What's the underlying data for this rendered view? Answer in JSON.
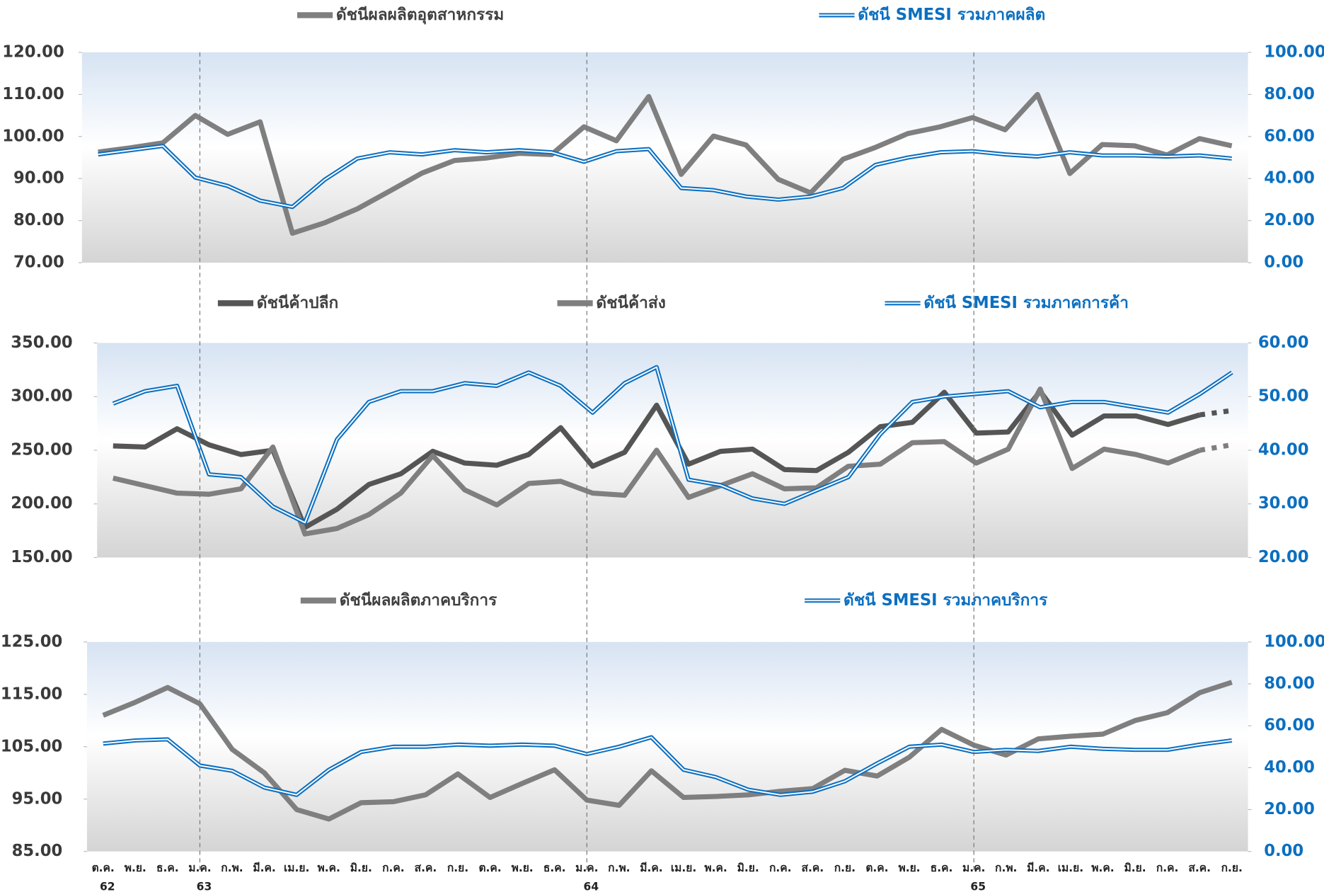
{
  "chart_data": [
    {
      "type": "line",
      "ylim": [
        70,
        120
      ],
      "yticks": [
        {
          "value": 70,
          "label": "70.00"
        },
        {
          "value": 80,
          "label": "80.00"
        },
        {
          "value": 90,
          "label": "90.00"
        },
        {
          "value": 100,
          "label": "100.00"
        },
        {
          "value": 110,
          "label": "110.00"
        },
        {
          "value": 120,
          "label": "120.00"
        }
      ],
      "y2lim": [
        0,
        100
      ],
      "y2ticks": [
        {
          "value": 0,
          "label": "0.00"
        },
        {
          "value": 20,
          "label": "20.00"
        },
        {
          "value": 40,
          "label": "40.00"
        },
        {
          "value": 60,
          "label": "60.00"
        },
        {
          "value": 80,
          "label": "80.00"
        },
        {
          "value": 100,
          "label": "100.00"
        }
      ],
      "series": [
        {
          "name": "ดัชนีผลผลิตอุตสาหกรรม",
          "color": "#7f7f7f",
          "line_style": "solid",
          "values": [
            96.3,
            97.3,
            98.5,
            105,
            100.5,
            103.5,
            77,
            79.5,
            82.8,
            87,
            91.3,
            94.3,
            94.9,
            96,
            95.7,
            102.3,
            99,
            109.5,
            91,
            100.1,
            98,
            89.8,
            86.6,
            94.6,
            97.4,
            100.7,
            102.3,
            104.5,
            101.6,
            110,
            91.2,
            98.1,
            97.8,
            95.6,
            99.5,
            97.8
          ]
        },
        {
          "name": "ดัชนี SMESI รวมภาคผลิต",
          "color": "#0b6fc0",
          "line_style": "double",
          "axis": "y2",
          "values": [
            51.5,
            53.5,
            55.5,
            40.5,
            36.5,
            29.5,
            26.5,
            39.5,
            49.5,
            52.5,
            51.5,
            53.5,
            52.5,
            53.5,
            52.5,
            48,
            53,
            54,
            35.5,
            34.5,
            31.5,
            30,
            31.5,
            35.5,
            46.5,
            50,
            52.5,
            53,
            51.5,
            50.5,
            52.5,
            51,
            51,
            50.5,
            51,
            49.5
          ]
        }
      ]
    },
    {
      "type": "line",
      "ylim": [
        150,
        350
      ],
      "yticks": [
        {
          "value": 150,
          "label": "150.00"
        },
        {
          "value": 200,
          "label": "200.00"
        },
        {
          "value": 250,
          "label": "250.00"
        },
        {
          "value": 300,
          "label": "300.00"
        },
        {
          "value": 350,
          "label": "350.00"
        }
      ],
      "y2lim": [
        20,
        60
      ],
      "y2ticks": [
        {
          "value": 20,
          "label": "20.00"
        },
        {
          "value": 30,
          "label": "30.00"
        },
        {
          "value": 40,
          "label": "40.00"
        },
        {
          "value": 50,
          "label": "50.00"
        },
        {
          "value": 60,
          "label": "60.00"
        }
      ],
      "series": [
        {
          "name": "ดัชนีค้าปลีก",
          "color": "#555555",
          "line_style": "solid",
          "dashed_from": 34,
          "values": [
            254,
            253,
            270,
            255,
            246,
            250,
            178,
            195,
            218,
            228,
            249,
            238,
            236,
            246,
            271,
            235,
            248,
            292,
            237,
            249,
            251,
            232,
            231,
            248,
            272,
            276,
            304,
            266,
            267,
            305,
            264,
            282,
            282,
            274,
            283,
            287
          ]
        },
        {
          "name": "ดัชนีค้าส่ง",
          "color": "#7f7f7f",
          "line_style": "solid",
          "dashed_from": 34,
          "values": [
            224,
            217,
            210,
            209,
            214,
            253,
            172,
            177,
            190,
            210,
            245,
            213,
            199,
            219,
            221,
            210,
            208,
            250,
            206,
            217,
            228,
            214,
            215,
            235,
            237,
            257,
            258,
            238,
            251,
            307,
            233,
            251,
            246,
            238,
            250,
            255
          ]
        },
        {
          "name": "ดัชนี SMESI รวมภาคการค้า",
          "color": "#0b6fc0",
          "line_style": "double",
          "axis": "y2",
          "values": [
            48.7,
            51,
            52,
            35.5,
            35,
            29.5,
            26.5,
            42,
            49,
            51,
            51,
            52.5,
            52,
            54.5,
            52,
            47,
            52.5,
            55.5,
            34.5,
            33.5,
            31,
            30,
            32.5,
            35,
            43,
            49,
            50,
            50.5,
            51,
            48,
            49,
            49,
            48,
            47,
            50.5,
            54.5
          ]
        }
      ]
    },
    {
      "type": "line",
      "categories": [
        "ต.ค.",
        "พ.ย.",
        "ธ.ค.",
        "ม.ค.",
        "ก.พ.",
        "มี.ค.",
        "เม.ย.",
        "พ.ค.",
        "มิ.ย.",
        "ก.ค.",
        "ส.ค.",
        "ก.ย.",
        "ต.ค.",
        "พ.ย.",
        "ธ.ค.",
        "ม.ค.",
        "ก.พ.",
        "มี.ค.",
        "เม.ย.",
        "พ.ค.",
        "มิ.ย.",
        "ก.ค.",
        "ส.ค.",
        "ก.ย.",
        "ต.ค.",
        "พ.ย.",
        "ธ.ค.",
        "ม.ค.",
        "ก.พ.",
        "มี.ค.",
        "เม.ย.",
        "พ.ค.",
        "มิ.ย.",
        "ก.ค.",
        "ส.ค.",
        "ก.ย."
      ],
      "year_labels": [
        "62",
        null,
        null,
        "63",
        null,
        null,
        null,
        null,
        null,
        null,
        null,
        null,
        null,
        null,
        null,
        "64",
        null,
        null,
        null,
        null,
        null,
        null,
        null,
        null,
        null,
        null,
        null,
        "65",
        null,
        null,
        null,
        null,
        null,
        null,
        null,
        null
      ],
      "ylim": [
        85,
        125
      ],
      "yticks": [
        {
          "value": 85,
          "label": "85.00"
        },
        {
          "value": 95,
          "label": "95.00"
        },
        {
          "value": 105,
          "label": "105.00"
        },
        {
          "value": 115,
          "label": "115.00"
        },
        {
          "value": 125,
          "label": "125.00"
        }
      ],
      "y2lim": [
        0,
        100
      ],
      "y2ticks": [
        {
          "value": 0,
          "label": "0.00"
        },
        {
          "value": 20,
          "label": "20.00"
        },
        {
          "value": 40,
          "label": "40.00"
        },
        {
          "value": 60,
          "label": "60.00"
        },
        {
          "value": 80,
          "label": "80.00"
        },
        {
          "value": 100,
          "label": "100.00"
        }
      ],
      "series": [
        {
          "name": "ดัชนีผลผลิตภาคบริการ",
          "color": "#7f7f7f",
          "line_style": "solid",
          "values": [
            111,
            113.5,
            116.3,
            113.2,
            104.5,
            100,
            93,
            91.2,
            94.3,
            94.5,
            95.8,
            99.8,
            95.3,
            98,
            100.6,
            94.8,
            93.8,
            100.4,
            95.3,
            95.5,
            95.8,
            96.5,
            97,
            100.5,
            99.4,
            103,
            108.3,
            105.3,
            103.4,
            106.5,
            107,
            107.4,
            110,
            111.5,
            115.3,
            117.3
          ]
        },
        {
          "name": "ดัชนี SMESI รวมภาคบริการ",
          "color": "#0b6fc0",
          "line_style": "double",
          "axis": "y2",
          "values": [
            51.5,
            53,
            53.5,
            41,
            38.5,
            30.5,
            27,
            39,
            47.5,
            50,
            50,
            51,
            50.5,
            51,
            50.5,
            46.5,
            50,
            54.5,
            39,
            35.5,
            29.5,
            27,
            28.5,
            33.5,
            42,
            50,
            51,
            47.5,
            48.5,
            48,
            50,
            49,
            48.5,
            48.5,
            51,
            53
          ]
        }
      ]
    }
  ]
}
